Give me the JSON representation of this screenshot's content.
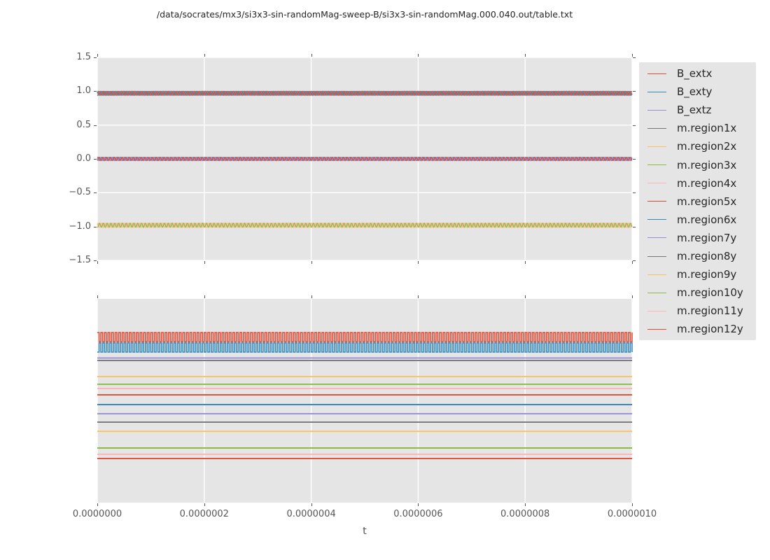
{
  "figure": {
    "title": "/data/socrates/mx3/si3x3-sin-randomMag-sweep-B/si3x3-sin-randomMag.000.040.out/table.txt",
    "xlabel": "t",
    "panel_bg": "#e5e5e5",
    "grid_color": "#ffffff",
    "tick_color": "#555555",
    "label_color": "#555555",
    "title_color": "#262626"
  },
  "palette": {
    "red": "#e24a33",
    "blue": "#348abd",
    "purple": "#988ed5",
    "gray": "#777777",
    "yellow": "#fbc15e",
    "green": "#8eba42",
    "pink": "#ffb5b8"
  },
  "legend": {
    "entries": [
      {
        "label": "B_extx",
        "color": "#e24a33"
      },
      {
        "label": "B_exty",
        "color": "#348abd"
      },
      {
        "label": "B_extz",
        "color": "#988ed5"
      },
      {
        "label": "m.region1x",
        "color": "#777777"
      },
      {
        "label": "m.region2x",
        "color": "#fbc15e"
      },
      {
        "label": "m.region3x",
        "color": "#8eba42"
      },
      {
        "label": "m.region4x",
        "color": "#ffb5b8"
      },
      {
        "label": "m.region5x",
        "color": "#e24a33"
      },
      {
        "label": "m.region6x",
        "color": "#348abd"
      },
      {
        "label": "m.region7y",
        "color": "#988ed5"
      },
      {
        "label": "m.region8y",
        "color": "#777777"
      },
      {
        "label": "m.region9y",
        "color": "#fbc15e"
      },
      {
        "label": "m.region10y",
        "color": "#8eba42"
      },
      {
        "label": "m.region11y",
        "color": "#ffb5b8"
      },
      {
        "label": "m.region12y",
        "color": "#e24a33"
      }
    ]
  },
  "chart_data": [
    {
      "type": "line",
      "panel": "top",
      "title": "",
      "xlabel": "",
      "ylabel": "",
      "xlim": [
        0,
        1e-06
      ],
      "ylim": [
        -1.5,
        1.5
      ],
      "grid": true,
      "ytick_labels": [
        "1.5",
        "1.0",
        "0.5",
        "0.0",
        "−0.5",
        "−1.0",
        "−1.5"
      ],
      "xtick_labels": [],
      "series": [
        {
          "name": "m.region1x",
          "color": "#777777",
          "kind": "sine",
          "level": 0.97,
          "amplitude": 0.03,
          "cycles": 140,
          "phase": 0.0
        },
        {
          "name": "m.region6x",
          "color": "#348abd",
          "kind": "sine",
          "level": 0.97,
          "amplitude": 0.03,
          "cycles": 140,
          "phase": 2.1
        },
        {
          "name": "m.region5x",
          "color": "#e24a33",
          "kind": "sine",
          "level": 0.97,
          "amplitude": 0.03,
          "cycles": 140,
          "phase": 4.2
        },
        {
          "name": "B_exty",
          "color": "#348abd",
          "kind": "sine",
          "level": 0.0,
          "amplitude": 0.025,
          "cycles": 140,
          "phase": 0.7
        },
        {
          "name": "B_extz",
          "color": "#988ed5",
          "kind": "sine",
          "level": 0.0,
          "amplitude": 0.025,
          "cycles": 140,
          "phase": 2.8
        },
        {
          "name": "B_extx",
          "color": "#e24a33",
          "kind": "sine",
          "level": 0.0,
          "amplitude": 0.025,
          "cycles": 140,
          "phase": 4.9
        },
        {
          "name": "m.region2x",
          "color": "#fbc15e",
          "kind": "sine",
          "level": -0.98,
          "amplitude": 0.03,
          "cycles": 140,
          "phase": 0.0
        },
        {
          "name": "m.region4x",
          "color": "#ffb5b8",
          "kind": "sine",
          "level": -0.98,
          "amplitude": 0.03,
          "cycles": 140,
          "phase": 2.1
        },
        {
          "name": "m.region3x",
          "color": "#8eba42",
          "kind": "sine",
          "level": -0.98,
          "amplitude": 0.03,
          "cycles": 140,
          "phase": 4.2
        }
      ]
    },
    {
      "type": "line",
      "panel": "bottom",
      "title": "",
      "xlabel": "t",
      "ylabel": "",
      "xlim": [
        0,
        1e-06
      ],
      "grid": true,
      "y_units": "axes-fraction-from-top",
      "ytick_labels": [],
      "xtick_labels": [
        "0.0000000",
        "0.0000002",
        "0.0000004",
        "0.0000006",
        "0.0000008",
        "0.0000010"
      ],
      "series": [
        {
          "name": "B_extx",
          "color": "#e24a33",
          "kind": "square",
          "frac_high": 0.165,
          "frac_low": 0.21,
          "cycles": 150,
          "start_high": true
        },
        {
          "name": "B_exty",
          "color": "#348abd",
          "kind": "square",
          "frac_high": 0.216,
          "frac_low": 0.261,
          "cycles": 150,
          "start_high": false
        },
        {
          "name": "B_extz",
          "color": "#988ed5",
          "kind": "flat",
          "frac": 0.29
        },
        {
          "name": "m.region1x",
          "color": "#777777",
          "kind": "flat",
          "frac": 0.302
        },
        {
          "name": "m.region2x",
          "color": "#fbc15e",
          "kind": "flat",
          "frac": 0.381
        },
        {
          "name": "m.region3x",
          "color": "#8eba42",
          "kind": "flat",
          "frac": 0.419
        },
        {
          "name": "m.region4x",
          "color": "#ffb5b8",
          "kind": "flat",
          "frac": 0.44
        },
        {
          "name": "m.region5x",
          "color": "#e24a33",
          "kind": "flat",
          "frac": 0.471
        },
        {
          "name": "m.region6x",
          "color": "#348abd",
          "kind": "flat",
          "frac": 0.519
        },
        {
          "name": "m.region7y",
          "color": "#988ed5",
          "kind": "flat",
          "frac": 0.564
        },
        {
          "name": "m.region8y",
          "color": "#777777",
          "kind": "flat",
          "frac": 0.605
        },
        {
          "name": "m.region9y",
          "color": "#fbc15e",
          "kind": "flat",
          "frac": 0.65
        },
        {
          "name": "m.region10y",
          "color": "#8eba42",
          "kind": "flat",
          "frac": 0.732
        },
        {
          "name": "m.region11y",
          "color": "#ffb5b8",
          "kind": "flat",
          "frac": 0.763
        },
        {
          "name": "m.region12y",
          "color": "#e24a33",
          "kind": "flat",
          "frac": 0.784
        }
      ]
    }
  ]
}
